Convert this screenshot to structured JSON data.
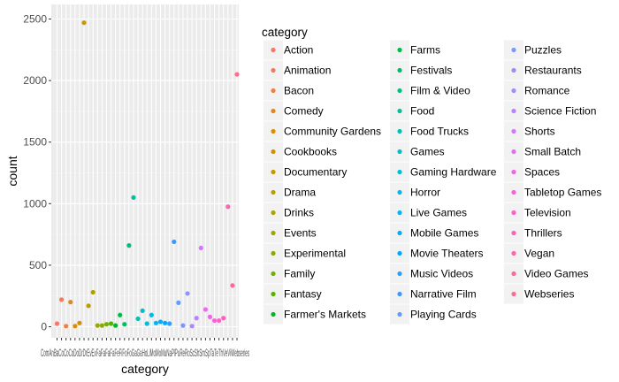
{
  "chart_data": {
    "type": "scatter",
    "xlabel": "category",
    "ylabel": "count",
    "ylim": [
      0,
      2550
    ],
    "y_ticks": [
      "0",
      "500",
      "1000",
      "1500",
      "2000",
      "2500"
    ],
    "grid": true,
    "legend_title": "category",
    "legend_position": "right",
    "x_tick_text": "ComAnBaCoCoCoDoDrDrEvExFaFaFaFaFeFiFoFoGaGaHoLiMoMoMuNaPlPuReRoScShSmSpTaTeThVeViWebseries",
    "categories": [
      "Action",
      "Animation",
      "Bacon",
      "Comedy",
      "Community Gardens",
      "Cookbooks",
      "Documentary",
      "Drama",
      "Drinks",
      "Events",
      "Experimental",
      "Family",
      "Fantasy",
      "Farmer's Markets",
      "Farms",
      "Festivals",
      "Film & Video",
      "Food",
      "Food Trucks",
      "Games",
      "Gaming Hardware",
      "Horror",
      "Live Games",
      "Mobile Games",
      "Movie Theaters",
      "Music Videos",
      "Narrative Film",
      "Playing Cards",
      "Puzzles",
      "Restaurants",
      "Romance",
      "Science Fiction",
      "Shorts",
      "Small Batch",
      "Spaces",
      "Tabletop Games",
      "Television",
      "Thrillers",
      "Vegan",
      "Video Games",
      "Webseries"
    ],
    "values": [
      25,
      220,
      5,
      200,
      5,
      30,
      2470,
      170,
      280,
      10,
      10,
      20,
      25,
      10,
      95,
      20,
      660,
      1050,
      65,
      130,
      25,
      95,
      30,
      40,
      30,
      25,
      690,
      195,
      10,
      270,
      5,
      70,
      640,
      140,
      80,
      50,
      50,
      70,
      975,
      335,
      2050
    ],
    "colors": [
      "#F8766D",
      "#F37B59",
      "#ED8141",
      "#E7861B",
      "#DE8C00",
      "#D49200",
      "#C99800",
      "#BC9D00",
      "#AEA200",
      "#9EA700",
      "#8BAB00",
      "#72B000",
      "#53B400",
      "#00B81F",
      "#00BB49",
      "#00BE67",
      "#00C081",
      "#00C19A",
      "#00C1B2",
      "#00C0C7",
      "#00BEDA",
      "#00BBEA",
      "#00B6F6",
      "#00B0F6",
      "#00A9FF",
      "#2AA1FF",
      "#3F98FF",
      "#619CFF",
      "#7997FF",
      "#9590FF",
      "#A58AFF",
      "#B983FF",
      "#D277FF",
      "#E76BF3",
      "#F166E8",
      "#F962DD",
      "#FF61CC",
      "#FF62BC",
      "#FF65AE",
      "#FF689F",
      "#FC6E91"
    ]
  }
}
